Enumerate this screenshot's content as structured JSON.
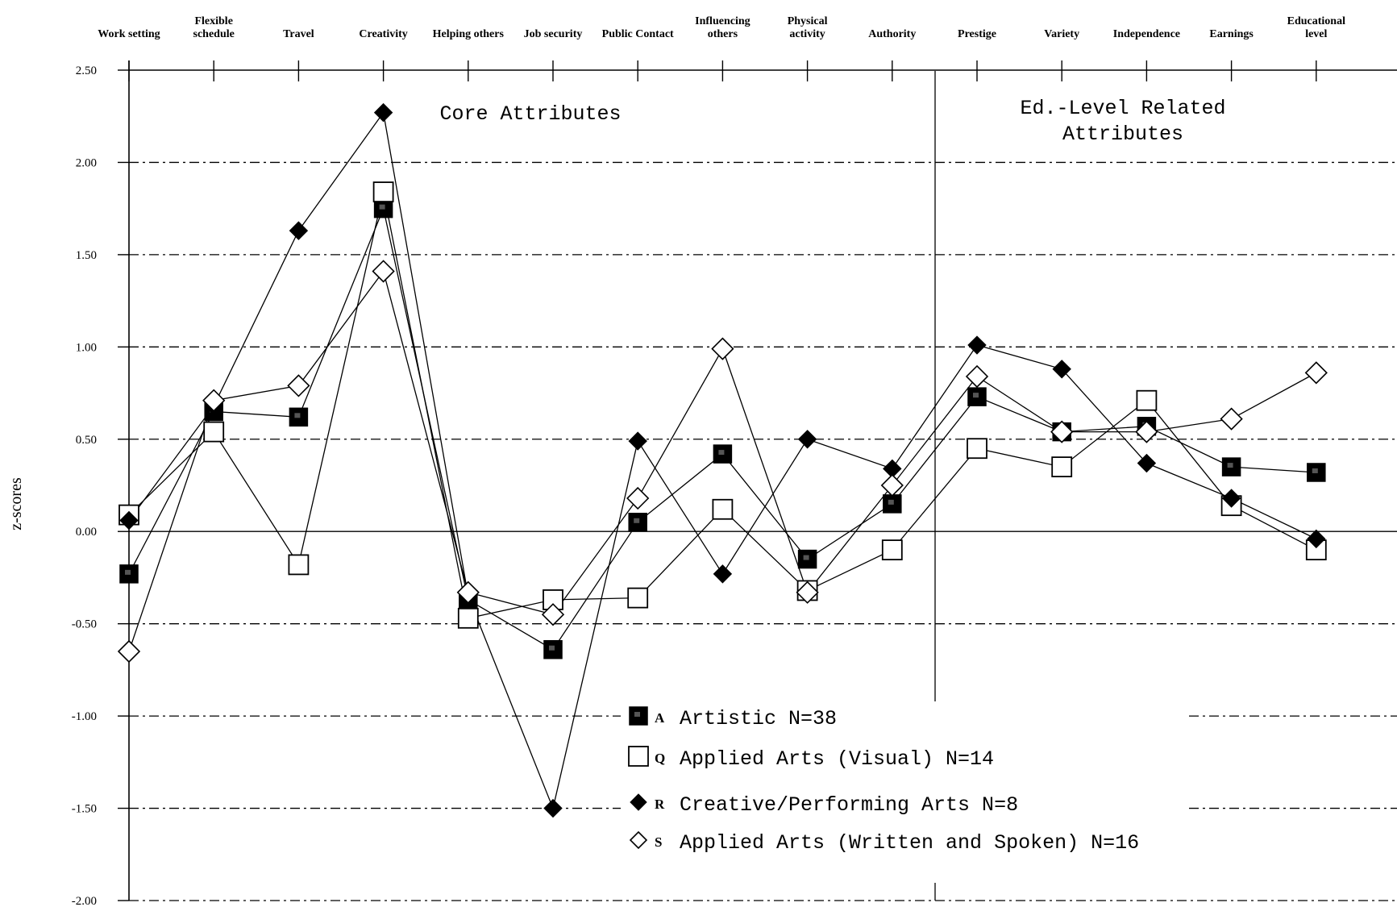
{
  "chart_data": {
    "type": "line",
    "title": "",
    "xlabel": "",
    "ylabel": "z-scores",
    "ylim": [
      -2.0,
      2.5
    ],
    "y_ticks": [
      "2.50",
      "2.00",
      "1.50",
      "1.00",
      "0.50",
      "0.00",
      "-0.50",
      "-1.00",
      "-1.50",
      "-2.00"
    ],
    "y_tick_values": [
      2.5,
      2.0,
      1.5,
      1.0,
      0.5,
      0.0,
      -0.5,
      -1.0,
      -1.5,
      -2.0
    ],
    "categories": [
      [
        "Work setting"
      ],
      [
        "Flexible",
        "schedule"
      ],
      [
        "Travel"
      ],
      [
        "Creativity"
      ],
      [
        "Helping others"
      ],
      [
        "Job security"
      ],
      [
        "Public Contact"
      ],
      [
        "Influencing",
        "others"
      ],
      [
        "Physical",
        "activity"
      ],
      [
        "Authority"
      ],
      [
        "Prestige"
      ],
      [
        "Variety"
      ],
      [
        "Independence"
      ],
      [
        "Earnings"
      ],
      [
        "Educational",
        "level"
      ]
    ],
    "section_labels": [
      [
        "Core Attributes"
      ],
      [
        "Ed.-Level Related",
        "Attributes"
      ]
    ],
    "series": [
      {
        "name": "Artistic N=38",
        "letter": "A",
        "marker": "square-filled",
        "values": [
          -0.23,
          0.65,
          0.62,
          1.75,
          -0.37,
          -0.64,
          0.05,
          0.42,
          -0.15,
          0.15,
          0.73,
          0.54,
          0.57,
          0.35,
          0.32
        ]
      },
      {
        "name": "Applied Arts (Visual) N=14",
        "letter": "Q",
        "marker": "square-open",
        "values": [
          0.09,
          0.54,
          -0.18,
          1.84,
          -0.47,
          -0.37,
          -0.36,
          0.12,
          -0.32,
          -0.1,
          0.45,
          0.35,
          0.71,
          0.14,
          -0.1
        ]
      },
      {
        "name": "Creative/Performing Arts N=8",
        "letter": "R",
        "marker": "diamond-filled",
        "values": [
          0.06,
          0.68,
          1.63,
          2.27,
          -0.35,
          -1.5,
          0.49,
          -0.23,
          0.5,
          0.34,
          1.01,
          0.88,
          0.37,
          0.18,
          -0.04
        ]
      },
      {
        "name": "Applied Arts (Written and Spoken) N=16",
        "letter": "S",
        "marker": "diamond-open",
        "values": [
          -0.65,
          0.71,
          0.79,
          1.41,
          -0.33,
          -0.45,
          0.18,
          0.99,
          -0.33,
          0.25,
          0.84,
          0.54,
          0.54,
          0.61,
          0.86
        ]
      }
    ],
    "grid": true,
    "legend_position": "bottom-center",
    "colors": {
      "line": "#000000",
      "background": "#ffffff"
    }
  }
}
